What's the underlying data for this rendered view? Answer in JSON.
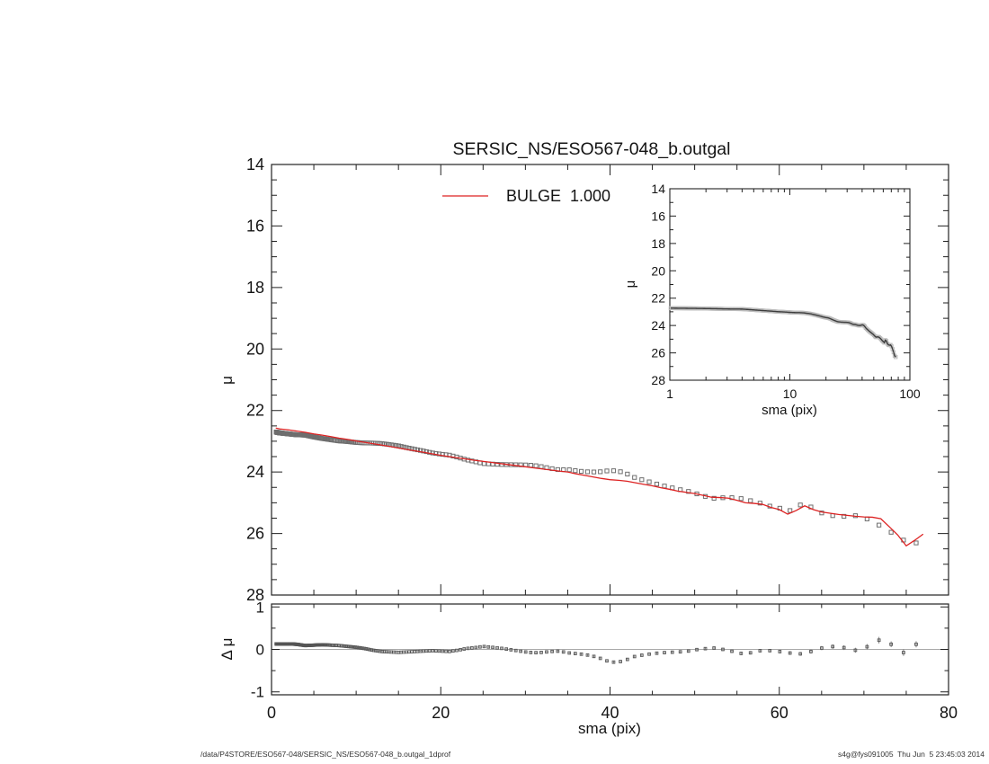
{
  "title": "SERSIC_NS/ESO567-048_b.outgal",
  "legend": {
    "label": "BULGE  1.000",
    "color": "#dd2222"
  },
  "footer": {
    "left": "/data/P4STORE/ESO567-048/SERSIC_NS/ESO567-048_b.outgal_1dprof",
    "right": "s4g@fys091005  Thu Jun  5 23:45:03 2014"
  },
  "colors": {
    "frame": "#222222",
    "model_line": "#dd2222",
    "data_marker": "#6e6e6e",
    "inset_marker": "#bcbcbc",
    "inset_line": "#3c3c3c",
    "residual_marker": "#555555",
    "error_bar": "#7a7a7a",
    "zero_line": "#a9a9a9"
  },
  "chart_data": [
    {
      "id": "main-profile",
      "type": "scatter",
      "ylabel": "μ",
      "xlim": [
        0,
        80
      ],
      "ylim": [
        28,
        14
      ],
      "y_inverted": true,
      "x_major_ticks": [
        0,
        20,
        40,
        60,
        80
      ],
      "x_minor_step": 5,
      "y_major_ticks": [
        14,
        16,
        18,
        20,
        22,
        24,
        26,
        28
      ],
      "y_minor_step": 0.5,
      "grid": false,
      "legend_position": "top-inside",
      "series": [
        {
          "name": "observed profile",
          "marker": "open-square",
          "color": "#6e6e6e",
          "sampling": {
            "type": "geometric",
            "start": 0.55,
            "ratio": 1.02,
            "max": 76.5
          },
          "derivation": "mu(sma) = model interpolation + residual interpolation"
        },
        {
          "name": "BULGE  1.000",
          "type": "line",
          "color": "#dd2222",
          "points": [
            [
              0.5,
              22.57
            ],
            [
              1,
              22.6
            ],
            [
              2,
              22.63
            ],
            [
              3,
              22.67
            ],
            [
              4,
              22.71
            ],
            [
              5,
              22.76
            ],
            [
              6,
              22.8
            ],
            [
              7,
              22.85
            ],
            [
              8,
              22.9
            ],
            [
              9,
              22.94
            ],
            [
              10,
              22.99
            ],
            [
              12,
              23.08
            ],
            [
              14,
              23.17
            ],
            [
              16,
              23.27
            ],
            [
              18,
              23.36
            ],
            [
              20,
              23.46
            ],
            [
              22,
              23.54
            ],
            [
              24,
              23.62
            ],
            [
              26,
              23.69
            ],
            [
              28,
              23.76
            ],
            [
              30,
              23.83
            ],
            [
              32,
              23.9
            ],
            [
              34,
              23.97
            ],
            [
              35,
              24.0
            ],
            [
              36,
              24.06
            ],
            [
              37,
              24.11
            ],
            [
              38,
              24.16
            ],
            [
              39,
              24.21
            ],
            [
              40,
              24.25
            ],
            [
              41,
              24.27
            ],
            [
              42,
              24.3
            ],
            [
              43,
              24.35
            ],
            [
              44,
              24.4
            ],
            [
              45,
              24.45
            ],
            [
              46,
              24.51
            ],
            [
              47,
              24.56
            ],
            [
              48,
              24.62
            ],
            [
              49,
              24.66
            ],
            [
              50,
              24.7
            ],
            [
              51,
              24.76
            ],
            [
              52,
              24.82
            ],
            [
              53,
              24.83
            ],
            [
              54,
              24.85
            ],
            [
              55,
              24.92
            ],
            [
              56,
              25.0
            ],
            [
              57,
              25.02
            ],
            [
              58,
              25.05
            ],
            [
              59,
              25.15
            ],
            [
              60,
              25.22
            ],
            [
              61,
              25.37
            ],
            [
              62,
              25.25
            ],
            [
              63,
              25.1
            ],
            [
              64,
              25.22
            ],
            [
              65,
              25.3
            ],
            [
              66,
              25.34
            ],
            [
              67,
              25.38
            ],
            [
              68,
              25.41
            ],
            [
              69,
              25.44
            ],
            [
              70,
              25.46
            ],
            [
              71,
              25.47
            ],
            [
              72,
              25.52
            ],
            [
              73,
              25.78
            ],
            [
              74,
              26.05
            ],
            [
              75,
              26.4
            ],
            [
              76,
              26.22
            ],
            [
              77,
              26.02
            ]
          ]
        }
      ]
    },
    {
      "id": "inset-log-profile",
      "type": "line",
      "xlabel": "sma (pix)",
      "ylabel": "μ",
      "xscale": "log",
      "xlim": [
        1,
        100
      ],
      "ylim": [
        28,
        14
      ],
      "x_major_ticks": [
        1,
        10,
        100
      ],
      "y_major_ticks": [
        14,
        16,
        18,
        20,
        22,
        24,
        26,
        28
      ],
      "y_minor_step": 1,
      "note": "same observed profile as main panel plotted on log x-axis"
    },
    {
      "id": "residual-panel",
      "type": "scatter",
      "xlabel": "sma (pix)",
      "ylabel": "Δ μ",
      "xlim": [
        0,
        80
      ],
      "ylim": [
        -1,
        1
      ],
      "x_major_ticks": [
        0,
        20,
        40,
        60,
        80
      ],
      "x_minor_step": 5,
      "y_major_ticks": [
        -1,
        0,
        1
      ],
      "y_minor_step": 0.5,
      "zero_line": true,
      "marker": "open-square",
      "residual_anchors": [
        [
          0.5,
          0.13
        ],
        [
          1,
          0.13
        ],
        [
          2,
          0.13
        ],
        [
          3,
          0.12
        ],
        [
          4,
          0.09
        ],
        [
          5,
          0.1
        ],
        [
          6,
          0.11
        ],
        [
          7,
          0.1
        ],
        [
          8,
          0.09
        ],
        [
          9,
          0.07
        ],
        [
          10,
          0.05
        ],
        [
          11,
          0.02
        ],
        [
          12,
          -0.02
        ],
        [
          13,
          -0.05
        ],
        [
          14,
          -0.06
        ],
        [
          15,
          -0.07
        ],
        [
          16,
          -0.06
        ],
        [
          17,
          -0.05
        ],
        [
          18,
          -0.04
        ],
        [
          19,
          -0.03
        ],
        [
          20,
          -0.04
        ],
        [
          21,
          -0.05
        ],
        [
          22,
          -0.02
        ],
        [
          23,
          0.02
        ],
        [
          24,
          0.04
        ],
        [
          25,
          0.07
        ],
        [
          26,
          0.05
        ],
        [
          27,
          0.03
        ],
        [
          28,
          0
        ],
        [
          29,
          -0.03
        ],
        [
          30,
          -0.06
        ],
        [
          31,
          -0.08
        ],
        [
          32,
          -0.07
        ],
        [
          33,
          -0.05
        ],
        [
          34,
          -0.04
        ],
        [
          35,
          -0.08
        ],
        [
          36,
          -0.1
        ],
        [
          37,
          -0.12
        ],
        [
          38,
          -0.16
        ],
        [
          39,
          -0.22
        ],
        [
          40,
          -0.3
        ],
        [
          41,
          -0.3
        ],
        [
          42,
          -0.24
        ],
        [
          43,
          -0.16
        ],
        [
          44,
          -0.13
        ],
        [
          45,
          -0.1
        ],
        [
          46,
          -0.08
        ],
        [
          47,
          -0.07
        ],
        [
          48,
          -0.06
        ],
        [
          49,
          -0.05
        ],
        [
          50,
          -0.01
        ],
        [
          51,
          0.01
        ],
        [
          52,
          0.04
        ],
        [
          53,
          0.01
        ],
        [
          54,
          -0.02
        ],
        [
          55,
          -0.08
        ],
        [
          56,
          -0.11
        ],
        [
          57,
          -0.06
        ],
        [
          58,
          -0.02
        ],
        [
          59,
          -0.03
        ],
        [
          60,
          -0.05
        ],
        [
          61,
          -0.08
        ],
        [
          62,
          -0.1
        ],
        [
          63,
          -0.11
        ],
        [
          64,
          -0.03
        ],
        [
          65,
          0.03
        ],
        [
          66,
          0.06
        ],
        [
          67,
          0.08
        ],
        [
          68,
          0.02
        ],
        [
          69,
          -0.02
        ],
        [
          70,
          0.04
        ],
        [
          71,
          0.1
        ],
        [
          72,
          0.25
        ],
        [
          73,
          0.16
        ],
        [
          74,
          -0.02
        ],
        [
          75,
          -0.1
        ],
        [
          76,
          0.1
        ],
        [
          77,
          0.22
        ]
      ],
      "error_anchors": [
        [
          0.5,
          0.005
        ],
        [
          10,
          0.008
        ],
        [
          20,
          0.012
        ],
        [
          30,
          0.02
        ],
        [
          40,
          0.03
        ],
        [
          50,
          0.03
        ],
        [
          55,
          0.04
        ],
        [
          60,
          0.04
        ],
        [
          65,
          0.05
        ],
        [
          70,
          0.06
        ],
        [
          72,
          0.08
        ],
        [
          74,
          0.06
        ],
        [
          75,
          0.09
        ],
        [
          76,
          0.07
        ],
        [
          77,
          0.09
        ]
      ]
    }
  ]
}
